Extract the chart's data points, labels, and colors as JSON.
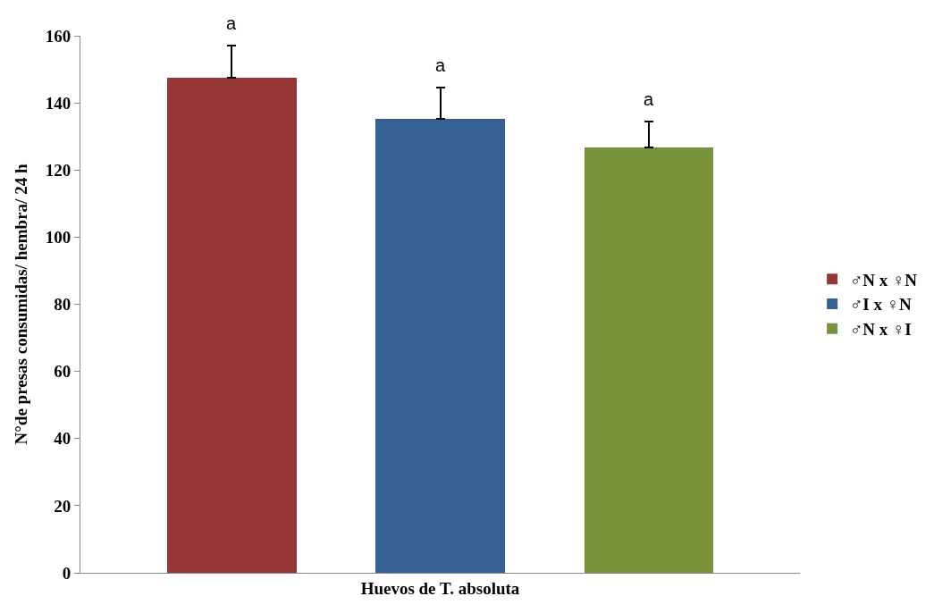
{
  "chart_data": {
    "type": "bar",
    "xlabel": "Huevos de T. absoluta",
    "ylabel": "N°de presas consumidas/ hembra/ 24 h",
    "categories": [
      null
    ],
    "series": [
      {
        "name": "♂N x ♀N",
        "color": "#953735",
        "values": [
          147.4
        ],
        "errors": [
          [
            147.4,
            157
          ]
        ]
      },
      {
        "name": "♂I x ♀N",
        "color": "#376092",
        "values": [
          135.3
        ],
        "errors": [
          [
            135.3,
            144.5
          ]
        ]
      },
      {
        "name": "♂N x ♀I",
        "color": "#77933c",
        "values": [
          126.6
        ],
        "errors": [
          [
            126.6,
            134.5
          ]
        ]
      }
    ],
    "annotations": [
      "a",
      "a",
      "a"
    ],
    "ylim": [
      0,
      160
    ],
    "yticks": [
      0,
      20,
      40,
      60,
      80,
      100,
      120,
      140,
      160
    ],
    "legend": "right"
  }
}
